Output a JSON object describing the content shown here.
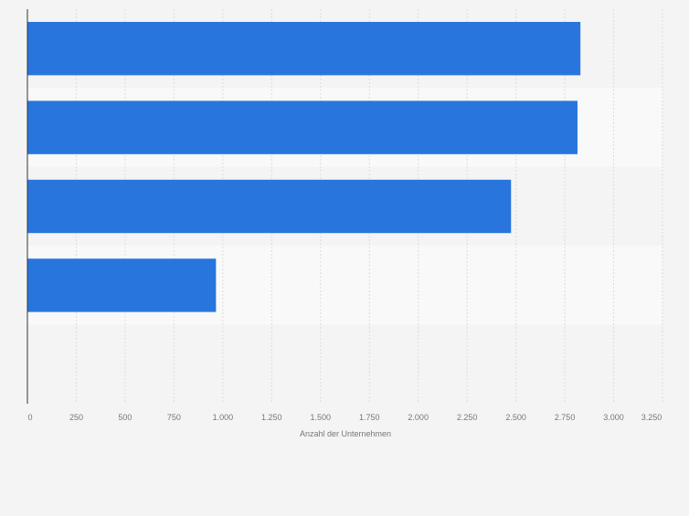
{
  "chart_data": {
    "type": "bar",
    "orientation": "horizontal",
    "categories": [
      "",
      "",
      "",
      "",
      ""
    ],
    "values": [
      2830,
      2815,
      2475,
      965,
      null
    ],
    "title": "",
    "xlabel": "Anzahl der Unternehmen",
    "ylabel": "",
    "xlim": [
      0,
      3250
    ],
    "ticks": [
      0,
      250,
      500,
      750,
      1000,
      1250,
      1500,
      1750,
      2000,
      2250,
      2500,
      2750,
      3000,
      3250
    ],
    "tick_labels": [
      "0",
      "250",
      "500",
      "750",
      "1.000",
      "1.250",
      "1.500",
      "1.750",
      "2.000",
      "2.250",
      "2.500",
      "2.750",
      "3.000",
      "3.250"
    ],
    "grid": true,
    "legend": "none",
    "colors": {
      "bar": "#2876dd",
      "band_dark": "#f4f4f4",
      "band_light": "#f9f9f9",
      "grid": "#dcdcdc",
      "axis": "#333333",
      "tick_text": "#777777"
    }
  }
}
